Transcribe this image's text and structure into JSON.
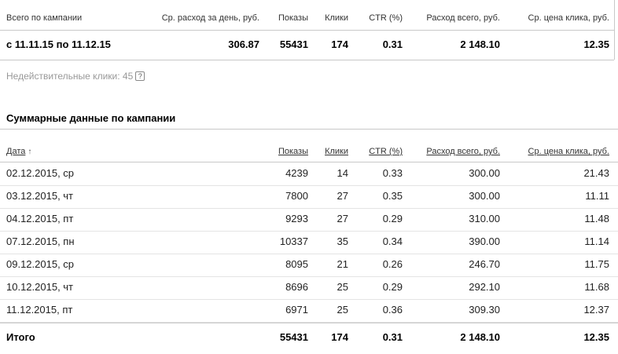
{
  "summary": {
    "headers": {
      "campaign": "Всего по кампании",
      "avg_day": "Ср. расход за день, руб.",
      "shows": "Показы",
      "clicks": "Клики",
      "ctr": "CTR (%)",
      "total": "Расход всего, руб.",
      "avg_click": "Ср. цена клика, руб."
    },
    "row": {
      "period": "с 11.11.15 по 11.12.15",
      "avg_day": "306.87",
      "shows": "55431",
      "clicks": "174",
      "ctr": "0.31",
      "total": "2 148.10",
      "avg_click": "12.35"
    }
  },
  "invalid_clicks": {
    "label": "Недействительные клики: 45",
    "help": "?"
  },
  "detail": {
    "title": "Суммарные данные по кампании",
    "headers": {
      "date": "Дата",
      "sort_arrow": "↑",
      "shows": "Показы",
      "clicks": "Клики",
      "ctr": "CTR (%)",
      "total": "Расход всего, руб.",
      "avg_click": "Ср. цена клика, руб."
    },
    "rows": [
      {
        "date": "02.12.2015, ср",
        "shows": "4239",
        "clicks": "14",
        "ctr": "0.33",
        "total": "300.00",
        "avg_click": "21.43"
      },
      {
        "date": "03.12.2015, чт",
        "shows": "7800",
        "clicks": "27",
        "ctr": "0.35",
        "total": "300.00",
        "avg_click": "11.11"
      },
      {
        "date": "04.12.2015, пт",
        "shows": "9293",
        "clicks": "27",
        "ctr": "0.29",
        "total": "310.00",
        "avg_click": "11.48"
      },
      {
        "date": "07.12.2015, пн",
        "shows": "10337",
        "clicks": "35",
        "ctr": "0.34",
        "total": "390.00",
        "avg_click": "11.14"
      },
      {
        "date": "09.12.2015, ср",
        "shows": "8095",
        "clicks": "21",
        "ctr": "0.26",
        "total": "246.70",
        "avg_click": "11.75"
      },
      {
        "date": "10.12.2015, чт",
        "shows": "8696",
        "clicks": "25",
        "ctr": "0.29",
        "total": "292.10",
        "avg_click": "11.68"
      },
      {
        "date": "11.12.2015, пт",
        "shows": "6971",
        "clicks": "25",
        "ctr": "0.36",
        "total": "309.30",
        "avg_click": "12.37"
      }
    ],
    "total": {
      "label": "Итого",
      "shows": "55431",
      "clicks": "174",
      "ctr": "0.31",
      "total": "2 148.10",
      "avg_click": "12.35"
    }
  }
}
